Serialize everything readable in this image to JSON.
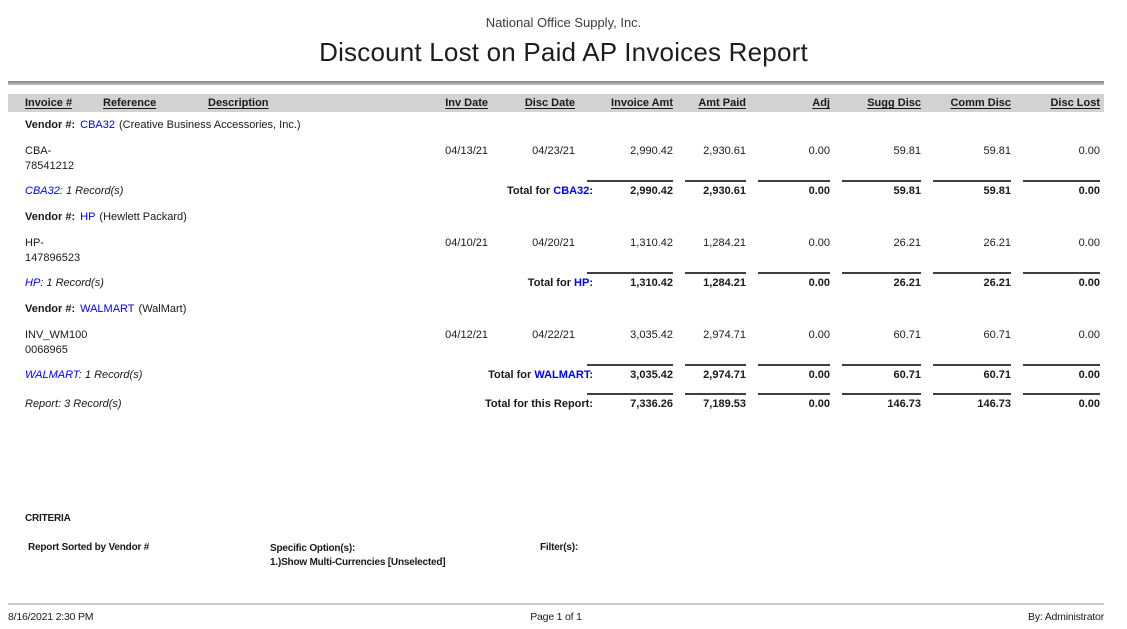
{
  "report": {
    "company": "National Office Supply, Inc.",
    "title": "Discount Lost on Paid AP Invoices Report",
    "columns": [
      "Invoice #",
      "Reference",
      "Description",
      "Inv Date",
      "Disc Date",
      "Invoice Amt",
      "Amt Paid",
      "Adj",
      "Sugg Disc",
      "Comm Disc",
      "Disc Lost"
    ],
    "labels": {
      "vendor_prefix": "Vendor #:",
      "total_prefix": "Total for",
      "colon": ":",
      "report_total_label": "Total for this Report:"
    },
    "link_color": "#0000ff",
    "groups": [
      {
        "vendor_id": "CBA32",
        "vendor_name": "(Creative Business Accessories, Inc.)",
        "invoice": "CBA-\n78541212",
        "reference": "",
        "description": "",
        "inv_date": "04/13/21",
        "disc_date": "04/23/21",
        "invoice_amt": "2,990.42",
        "amt_paid": "2,930.61",
        "adj": "0.00",
        "sugg_disc": "59.81",
        "comm_disc": "59.81",
        "disc_lost": "0.00",
        "summary_rest": ": 1 Record(s)",
        "totals": {
          "invoice_amt": "2,990.42",
          "amt_paid": "2,930.61",
          "adj": "0.00",
          "sugg_disc": "59.81",
          "comm_disc": "59.81",
          "disc_lost": "0.00"
        }
      },
      {
        "vendor_id": "HP",
        "vendor_name": "(Hewlett Packard)",
        "invoice": "HP-\n147896523",
        "reference": "",
        "description": "",
        "inv_date": "04/10/21",
        "disc_date": "04/20/21",
        "invoice_amt": "1,310.42",
        "amt_paid": "1,284.21",
        "adj": "0.00",
        "sugg_disc": "26.21",
        "comm_disc": "26.21",
        "disc_lost": "0.00",
        "summary_rest": ": 1 Record(s)",
        "totals": {
          "invoice_amt": "1,310.42",
          "amt_paid": "1,284.21",
          "adj": "0.00",
          "sugg_disc": "26.21",
          "comm_disc": "26.21",
          "disc_lost": "0.00"
        }
      },
      {
        "vendor_id": "WALMART",
        "vendor_name": "(WalMart)",
        "invoice": "INV_WM100\n0068965",
        "reference": "",
        "description": "",
        "inv_date": "04/12/21",
        "disc_date": "04/22/21",
        "invoice_amt": "3,035.42",
        "amt_paid": "2,974.71",
        "adj": "0.00",
        "sugg_disc": "60.71",
        "comm_disc": "60.71",
        "disc_lost": "0.00",
        "summary_rest": ": 1 Record(s)",
        "totals": {
          "invoice_amt": "3,035.42",
          "amt_paid": "2,974.71",
          "adj": "0.00",
          "sugg_disc": "60.71",
          "comm_disc": "60.71",
          "disc_lost": "0.00"
        }
      }
    ],
    "report_summary": {
      "label": "Report: 3 Record(s)",
      "totals": {
        "invoice_amt": "7,336.26",
        "amt_paid": "7,189.53",
        "adj": "0.00",
        "sugg_disc": "146.73",
        "comm_disc": "146.73",
        "disc_lost": "0.00"
      }
    },
    "criteria": {
      "heading": "CRITERIA",
      "sorted_by": "Report Sorted by Vendor #",
      "options_label": "Specific Option(s):",
      "option_1": "1.)Show Multi-Currencies [Unselected]",
      "filters_label": "Filter(s):"
    },
    "footer": {
      "datetime": "8/16/2021 2:30 PM",
      "page": "Page 1 of 1",
      "by": "By: Administrator"
    }
  }
}
